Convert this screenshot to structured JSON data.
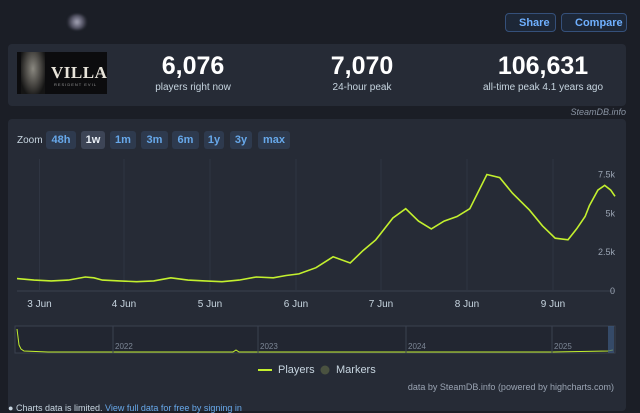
{
  "header": {
    "share_label": "Share",
    "compare_label": "Compare"
  },
  "game": {
    "cover_title": "VILLAGE",
    "cover_subtitle": "RESIDENT EVIL"
  },
  "stats": [
    {
      "value": "6,076",
      "label": "players right now"
    },
    {
      "value": "7,070",
      "label": "24-hour peak"
    },
    {
      "value": "106,631",
      "label": "all-time peak 4.1 years ago"
    }
  ],
  "stats_credit": "SteamDB.info",
  "zoom": {
    "label": "Zoom",
    "buttons": [
      "48h",
      "1w",
      "1m",
      "3m",
      "6m",
      "1y",
      "3y",
      "max"
    ],
    "active": "1w"
  },
  "legend": {
    "players": "Players",
    "markers": "Markers"
  },
  "source_text": "data by SteamDB.info (powered by highcharts.com)",
  "footer": {
    "note": "Charts data is limited.",
    "link": "View full data for free by signing in"
  },
  "colors": {
    "series": "#c3f02e",
    "accent": "#67a8ea",
    "background": "#1b1e26",
    "panel": "#262b36"
  },
  "chart_data": {
    "type": "line",
    "x_ticks": [
      "3 Jun",
      "4 Jun",
      "5 Jun",
      "6 Jun",
      "7 Jun",
      "8 Jun",
      "9 Jun"
    ],
    "y_ticks": [
      "0",
      "2.5k",
      "5k",
      "7.5k"
    ],
    "ylim": [
      0,
      8500
    ],
    "xlim": [
      0.0,
      7.0
    ],
    "series": [
      {
        "name": "Players",
        "x": [
          0.0,
          0.2,
          0.4,
          0.6,
          0.8,
          0.9,
          1.0,
          1.2,
          1.4,
          1.6,
          1.8,
          2.0,
          2.2,
          2.4,
          2.6,
          2.8,
          3.0,
          3.15,
          3.3,
          3.5,
          3.7,
          3.9,
          4.05,
          4.2,
          4.4,
          4.55,
          4.7,
          4.85,
          5.0,
          5.15,
          5.3,
          5.5,
          5.65,
          5.8,
          6.0,
          6.15,
          6.3,
          6.45,
          6.55,
          6.65,
          6.7,
          6.8,
          6.88,
          6.95,
          7.0
        ],
        "y": [
          800,
          700,
          650,
          700,
          900,
          850,
          700,
          650,
          600,
          650,
          850,
          700,
          650,
          600,
          700,
          900,
          850,
          1000,
          1100,
          1500,
          2200,
          1800,
          2600,
          3300,
          4700,
          5300,
          4500,
          4000,
          4500,
          4800,
          5300,
          7500,
          7300,
          6300,
          5200,
          4200,
          3400,
          3300,
          4000,
          4800,
          5500,
          6500,
          6800,
          6500,
          6100
        ]
      }
    ],
    "navigator": {
      "x_labels": [
        "2022",
        "2023",
        "2024",
        "2025"
      ]
    }
  }
}
